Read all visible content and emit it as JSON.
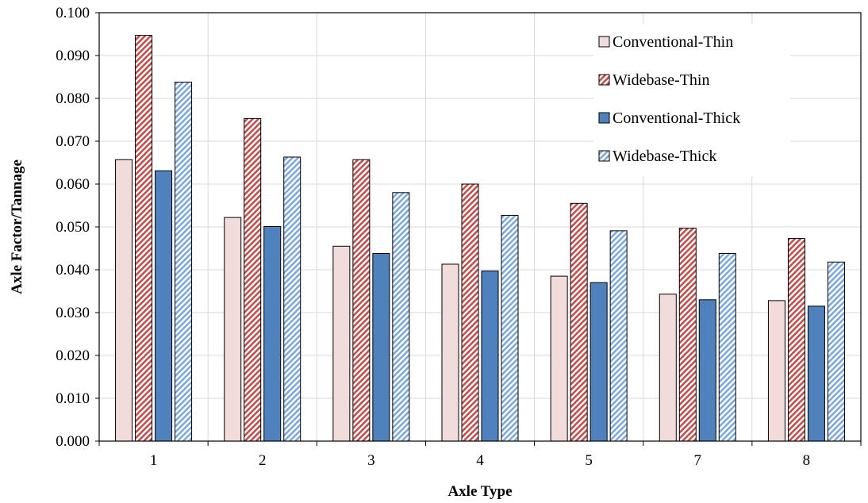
{
  "chart_data": {
    "type": "bar",
    "title": "",
    "xlabel": "Axle Type",
    "ylabel": "Axle Factor/Tannage",
    "ylim": [
      0,
      0.1
    ],
    "yticks": [
      "0.000",
      "0.010",
      "0.020",
      "0.030",
      "0.040",
      "0.050",
      "0.060",
      "0.070",
      "0.080",
      "0.090",
      "0.100"
    ],
    "categories": [
      "1",
      "2",
      "3",
      "4",
      "5",
      "7",
      "8"
    ],
    "grid": true,
    "legend_position": "top-right",
    "series": [
      {
        "name": "Conventional-Thin",
        "color": "#f2dcdb",
        "pattern": "solid",
        "values": [
          0.0657,
          0.0522,
          0.0455,
          0.0413,
          0.0385,
          0.0343,
          0.0328
        ]
      },
      {
        "name": "Widebase-Thin",
        "color": "#c0504d",
        "pattern": "diagonal-hatch",
        "values": [
          0.0947,
          0.0753,
          0.0657,
          0.06,
          0.0555,
          0.0497,
          0.0473
        ]
      },
      {
        "name": "Conventional-Thick",
        "color": "#4f81bd",
        "pattern": "solid",
        "values": [
          0.0631,
          0.0501,
          0.0438,
          0.0397,
          0.037,
          0.033,
          0.0315
        ]
      },
      {
        "name": "Widebase-Thick",
        "color": "#9dc3e6",
        "pattern": "diagonal-hatch",
        "values": [
          0.0838,
          0.0663,
          0.058,
          0.0527,
          0.0491,
          0.0438,
          0.0418
        ]
      }
    ]
  }
}
